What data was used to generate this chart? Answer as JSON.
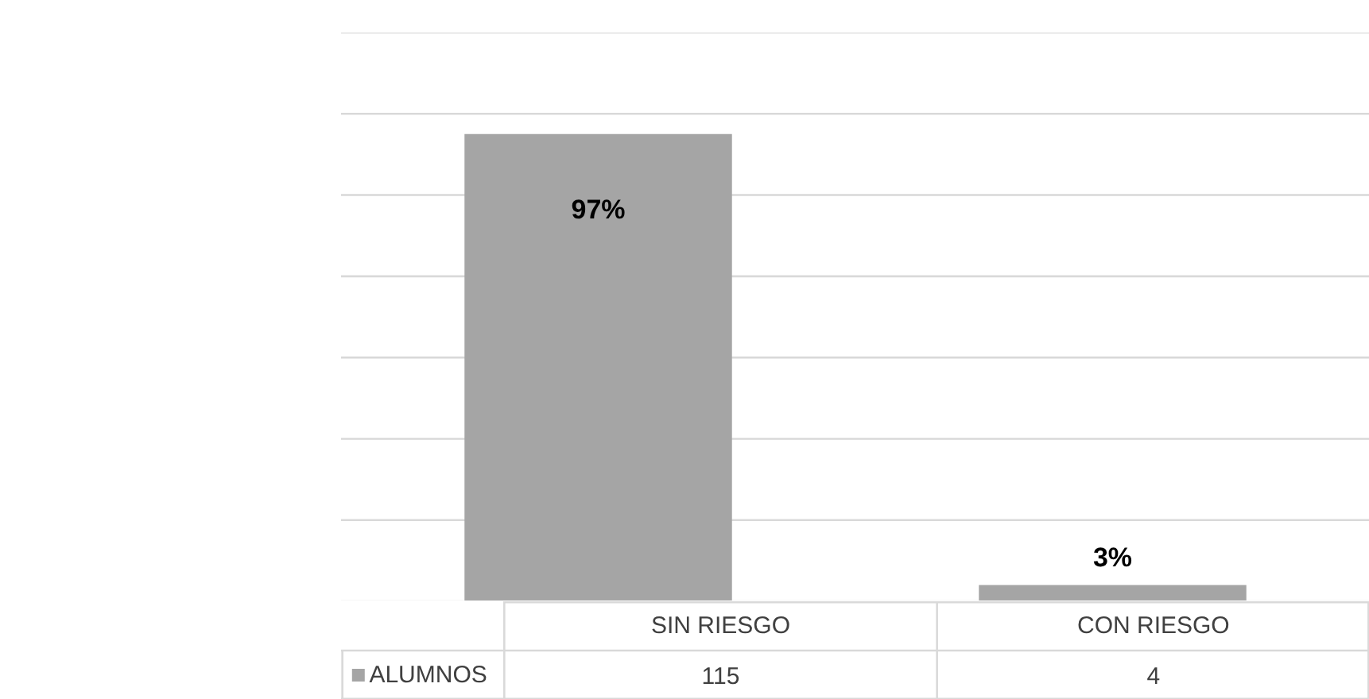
{
  "chart_data": {
    "type": "bar",
    "categories": [
      "SIN RIESGO",
      "CON RIESGO"
    ],
    "series": [
      {
        "name": "ALUMNOS",
        "color": "#a5a5a5",
        "values": [
          115,
          4
        ]
      }
    ],
    "ylim": [
      0,
      140
    ],
    "yticks": [
      {
        "value": 0,
        "label": null
      },
      {
        "value": 20,
        "label": null
      },
      {
        "value": 40,
        "label": null
      },
      {
        "value": 60,
        "label": null
      },
      {
        "value": 80,
        "label": null
      },
      {
        "value": 100,
        "label": null
      },
      {
        "value": 120,
        "label": null
      },
      {
        "value": 140,
        "label": null
      }
    ],
    "tick_labels": false,
    "grid": "y",
    "data_labels": true,
    "annotations": [
      "97%",
      "3%"
    ]
  }
}
